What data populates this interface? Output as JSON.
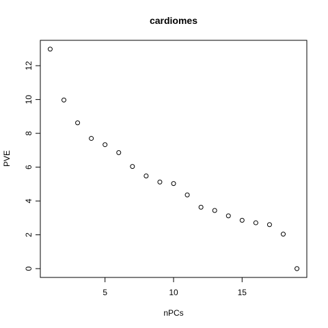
{
  "chart_data": {
    "type": "scatter",
    "title": "cardiomes",
    "xlabel": "nPCs",
    "ylabel": "PVE",
    "x": [
      1,
      2,
      3,
      4,
      5,
      6,
      7,
      8,
      9,
      10,
      11,
      12,
      13,
      14,
      15,
      16,
      17,
      18,
      19
    ],
    "y": [
      12.98,
      9.97,
      8.62,
      7.7,
      7.33,
      6.86,
      6.04,
      5.48,
      5.12,
      5.03,
      4.36,
      3.63,
      3.44,
      3.12,
      2.86,
      2.71,
      2.6,
      2.04,
      0.0
    ],
    "xlim": [
      0.28,
      19.72
    ],
    "ylim": [
      -0.52,
      13.5
    ],
    "xticks": [
      5,
      10,
      15
    ],
    "yticks": [
      0,
      2,
      4,
      6,
      8,
      10,
      12
    ],
    "grid": false,
    "marker": "open-circle",
    "point_color": "#000000"
  }
}
